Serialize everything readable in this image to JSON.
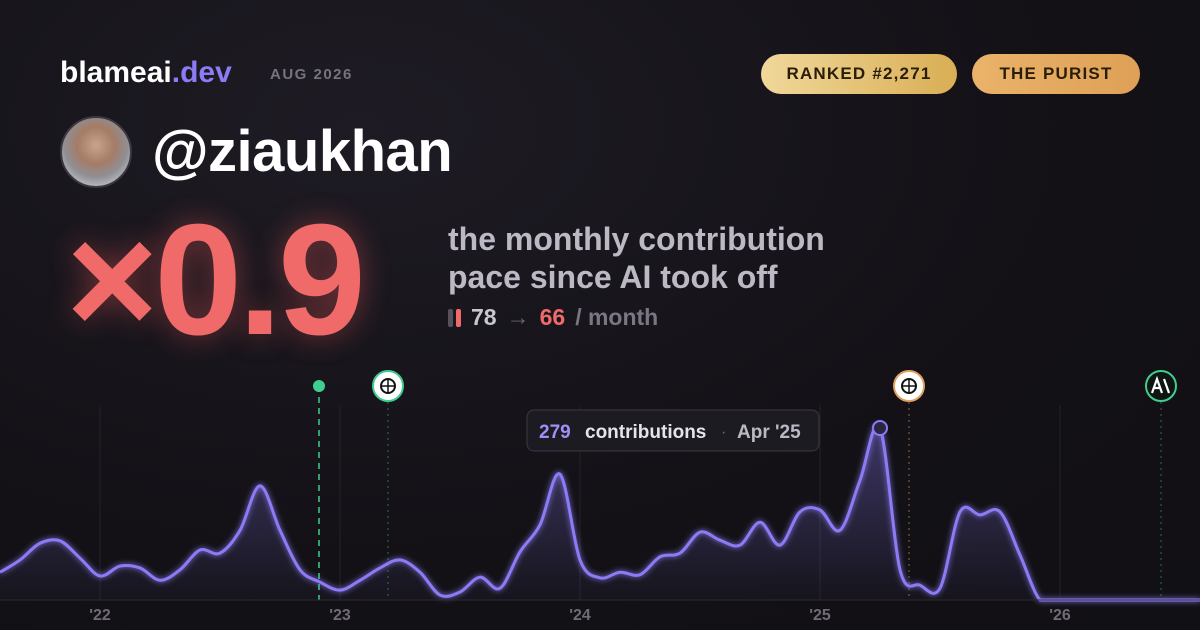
{
  "header": {
    "brand": "blameai",
    "brand_suffix": ".dev",
    "date": "AUG 2026",
    "badges": [
      "RANKED #2,271",
      "THE PURIST"
    ]
  },
  "profile": {
    "handle": "@ziaukhan"
  },
  "headline": {
    "multiplier": "×0.9",
    "description": [
      "the monthly contribution",
      "pace since AI took off"
    ],
    "pace": {
      "before": 78,
      "arrow": "→",
      "after": 66,
      "unit": "/ month"
    }
  },
  "chart_data": {
    "type": "area",
    "color": "#8b7cf6",
    "x": [
      -5,
      -4,
      -3,
      -2,
      -1,
      0,
      1,
      2,
      3,
      4,
      5,
      6,
      7,
      8,
      9,
      10,
      11,
      12,
      13,
      14,
      15,
      16,
      17,
      18,
      19,
      20,
      21,
      22,
      23,
      24,
      25,
      26,
      27,
      28,
      29,
      30,
      31,
      32,
      33,
      34,
      35,
      36,
      37,
      38,
      39,
      40,
      41,
      42,
      43,
      44,
      45,
      46,
      47,
      48,
      49,
      50,
      51,
      52,
      53,
      54,
      55
    ],
    "values": [
      45,
      65,
      92,
      96,
      68,
      39,
      55,
      52,
      32,
      49,
      81,
      76,
      113,
      185,
      113,
      49,
      29,
      16,
      32,
      52,
      65,
      45,
      8,
      13,
      37,
      19,
      78,
      122,
      204,
      65,
      36,
      45,
      41,
      70,
      76,
      110,
      97,
      89,
      126,
      89,
      143,
      146,
      113,
      194,
      279,
      49,
      24,
      19,
      143,
      138,
      143,
      73,
      0,
      0,
      0,
      0,
      0,
      0,
      0,
      0,
      0
    ],
    "xlim": [
      -5,
      55
    ],
    "ylim": [
      0,
      300
    ],
    "xticks": [
      {
        "value": 0,
        "label": "'22"
      },
      {
        "value": 12,
        "label": "'23"
      },
      {
        "value": 24,
        "label": "'24"
      },
      {
        "value": 36,
        "label": "'25"
      },
      {
        "value": 48,
        "label": "'26"
      }
    ],
    "grid": true,
    "tooltip": {
      "value": 279,
      "label": "contributions",
      "date": "Apr '25"
    }
  }
}
